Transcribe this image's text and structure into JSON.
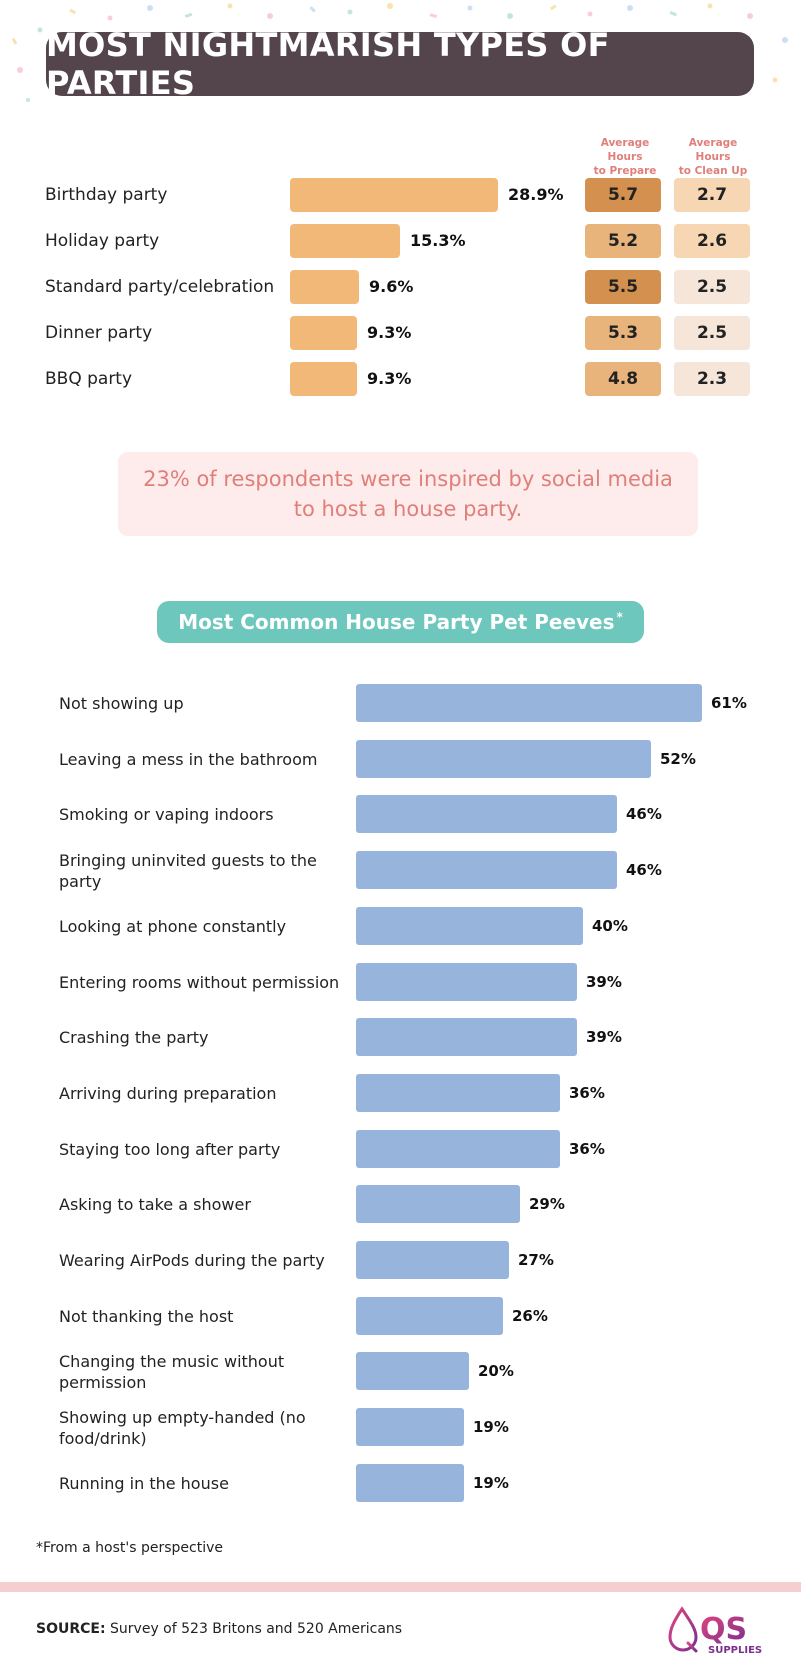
{
  "title": "MOST NIGHTMARISH TYPES OF PARTIES",
  "colors": {
    "title_bg": "#54454c",
    "party_bar": "#f2b877",
    "prepare_dark": "#d4904f",
    "prepare_light": "#e9b47c",
    "cleanup_dark": "#f7d6b3",
    "cleanup_light": "#f5e6d9",
    "pet_peeve_bar": "#97b4dc",
    "callout_bg": "#fdeceb",
    "callout_text": "#e07f7a",
    "subtitle_bg": "#6ec7bd"
  },
  "columns": {
    "prepare_line1": "Average Hours",
    "prepare_line2": "to Prepare",
    "cleanup_line1": "Average Hours",
    "cleanup_line2": "to Clean Up"
  },
  "callout": "23% of respondents were inspired by social media to host a house party.",
  "subtitle": "Most Common House Party Pet Peeves",
  "subtitle_mark": "*",
  "footnote": "*From a host's perspective",
  "source_label": "SOURCE:",
  "source_text": "Survey of 523 Britons and 520 Americans",
  "logo": {
    "text": "QS",
    "subtext": "SUPPLIES",
    "icon": "qs-drop-logo-icon"
  },
  "chart_data": [
    {
      "type": "bar",
      "orientation": "horizontal",
      "title": "MOST NIGHTMARISH TYPES OF PARTIES",
      "categories": [
        "Birthday party",
        "Holiday party",
        "Standard party/celebration",
        "Dinner party",
        "BBQ party"
      ],
      "values": [
        28.9,
        15.3,
        9.6,
        9.3,
        9.3
      ],
      "value_labels": [
        "28.9%",
        "15.3%",
        "9.6%",
        "9.3%",
        "9.3%"
      ],
      "xlim": [
        0,
        28.9
      ],
      "grid": false,
      "legend": "none",
      "table_columns": [
        {
          "name": "Average Hours to Prepare",
          "values": [
            5.7,
            5.2,
            5.5,
            5.3,
            4.8
          ],
          "labels": [
            "5.7",
            "5.2",
            "5.5",
            "5.3",
            "4.8"
          ]
        },
        {
          "name": "Average Hours to Clean Up",
          "values": [
            2.7,
            2.6,
            2.5,
            2.5,
            2.3
          ],
          "labels": [
            "2.7",
            "2.6",
            "2.5",
            "2.5",
            "2.3"
          ]
        }
      ]
    },
    {
      "type": "bar",
      "orientation": "horizontal",
      "title": "Most Common House Party Pet Peeves*",
      "categories": [
        "Not showing up",
        "Leaving a mess in the bathroom",
        "Smoking or vaping indoors",
        "Bringing uninvited guests to the party",
        "Looking at phone constantly",
        "Entering rooms without permission",
        "Crashing the party",
        "Arriving during preparation",
        "Staying too long after party",
        "Asking to take a shower",
        "Wearing AirPods during the party",
        "Not thanking the host",
        "Changing the music without permission",
        "Showing up empty-handed (no food/drink)",
        "Running in the house"
      ],
      "values": [
        61,
        52,
        46,
        46,
        40,
        39,
        39,
        36,
        36,
        29,
        27,
        26,
        20,
        19,
        19
      ],
      "value_labels": [
        "61%",
        "52%",
        "46%",
        "46%",
        "40%",
        "39%",
        "39%",
        "36%",
        "36%",
        "29%",
        "27%",
        "26%",
        "20%",
        "19%",
        "19%"
      ],
      "xlim": [
        0,
        61
      ],
      "grid": false,
      "legend": "none"
    }
  ]
}
